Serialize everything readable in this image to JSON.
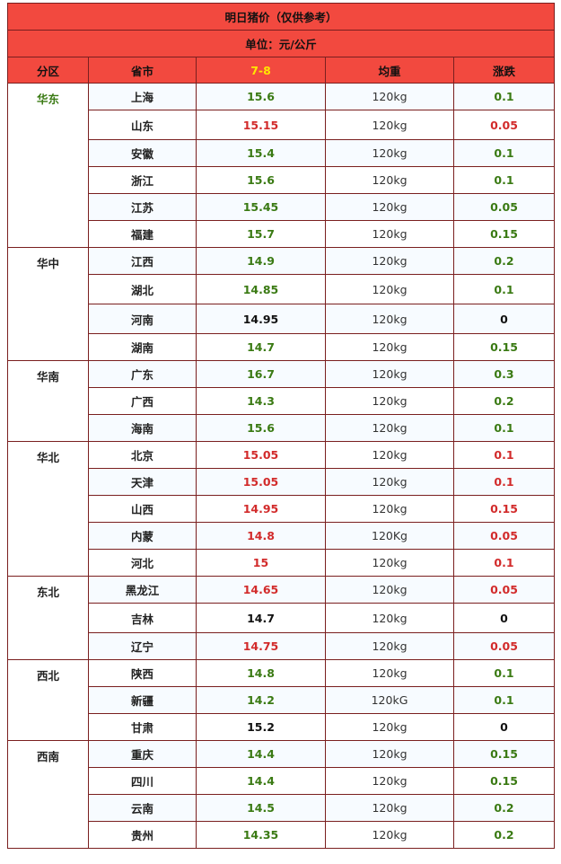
{
  "header": {
    "title": "明日猪价（仅供参考）",
    "unit": "单位：元/公斤",
    "columns": [
      "分区",
      "省市",
      "7-8",
      "均重",
      "涨跌"
    ]
  },
  "colors": {
    "header_bg": "#f2493f",
    "date_label": "#ffe600",
    "up_green": "#3a7a13",
    "red": "#d22b2b",
    "border": "#7a1f1f"
  },
  "regions": [
    {
      "name": "华东",
      "name_color": "green",
      "rows": [
        {
          "province": "上海",
          "price": "15.6",
          "price_color": "green",
          "weight": "120kg",
          "weight_color": "normal",
          "change": "0.1",
          "change_color": "green"
        },
        {
          "province": "山东",
          "price": "15.15",
          "price_color": "red",
          "weight": "120kg",
          "weight_color": "normal",
          "change": "0.05",
          "change_color": "red"
        },
        {
          "province": "安徽",
          "price": "15.4",
          "price_color": "green",
          "weight": "120kg",
          "weight_color": "normal",
          "change": "0.1",
          "change_color": "green"
        },
        {
          "province": "浙江",
          "price": "15.6",
          "price_color": "green",
          "weight": "120kg",
          "weight_color": "normal",
          "change": "0.1",
          "change_color": "green"
        },
        {
          "province": "江苏",
          "price": "15.45",
          "price_color": "green",
          "weight": "120kg",
          "weight_color": "normal",
          "change": "0.05",
          "change_color": "green"
        },
        {
          "province": "福建",
          "price": "15.7",
          "price_color": "green",
          "weight": "120kg",
          "weight_color": "red",
          "change": "0.15",
          "change_color": "green"
        }
      ]
    },
    {
      "name": "华中",
      "name_color": "normal",
      "rows": [
        {
          "province": "江西",
          "price": "14.9",
          "price_color": "green",
          "weight": "120kg",
          "weight_color": "normal",
          "change": "0.2",
          "change_color": "green"
        },
        {
          "province": "湖北",
          "price": "14.85",
          "price_color": "green",
          "weight": "120kg",
          "weight_color": "normal",
          "change": "0.1",
          "change_color": "green"
        },
        {
          "province": "河南",
          "price": "14.95",
          "price_color": "black",
          "weight": "120kg",
          "weight_color": "normal",
          "change": "0",
          "change_color": "black"
        },
        {
          "province": "湖南",
          "price": "14.7",
          "price_color": "green",
          "weight": "120kg",
          "weight_color": "normal",
          "change": "0.15",
          "change_color": "green"
        }
      ]
    },
    {
      "name": "华南",
      "name_color": "normal",
      "rows": [
        {
          "province": "广东",
          "price": "16.7",
          "price_color": "green",
          "weight": "120kg",
          "weight_color": "red",
          "change": "0.3",
          "change_color": "green"
        },
        {
          "province": "广西",
          "price": "14.3",
          "price_color": "green",
          "weight": "120kg",
          "weight_color": "normal",
          "change": "0.2",
          "change_color": "green"
        },
        {
          "province": "海南",
          "price": "15.6",
          "price_color": "green",
          "weight": "120kg",
          "weight_color": "normal",
          "change": "0.1",
          "change_color": "green"
        }
      ]
    },
    {
      "name": "华北",
      "name_color": "normal",
      "rows": [
        {
          "province": "北京",
          "price": "15.05",
          "price_color": "red",
          "weight": "120kg",
          "weight_color": "normal",
          "change": "0.1",
          "change_color": "red"
        },
        {
          "province": "天津",
          "price": "15.05",
          "price_color": "red",
          "weight": "120kg",
          "weight_color": "normal",
          "change": "0.1",
          "change_color": "red"
        },
        {
          "province": "山西",
          "price": "14.95",
          "price_color": "red",
          "weight": "120kg",
          "weight_color": "normal",
          "change": "0.15",
          "change_color": "red"
        },
        {
          "province": "内蒙",
          "price": "14.8",
          "price_color": "red",
          "weight": "120Kg",
          "weight_color": "normal",
          "change": "0.05",
          "change_color": "red"
        },
        {
          "province": "河北",
          "price": "15",
          "price_color": "red",
          "weight": "120kg",
          "weight_color": "normal",
          "change": "0.1",
          "change_color": "red"
        }
      ]
    },
    {
      "name": "东北",
      "name_color": "normal",
      "rows": [
        {
          "province": "黑龙江",
          "price": "14.65",
          "price_color": "red",
          "weight": "120kg",
          "weight_color": "normal",
          "change": "0.05",
          "change_color": "red"
        },
        {
          "province": "吉林",
          "price": "14.7",
          "price_color": "black",
          "weight": "120kg",
          "weight_color": "normal",
          "change": "0",
          "change_color": "black"
        },
        {
          "province": "辽宁",
          "price": "14.75",
          "price_color": "red",
          "weight": "120kg",
          "weight_color": "normal",
          "change": "0.05",
          "change_color": "red"
        }
      ]
    },
    {
      "name": "西北",
      "name_color": "normal",
      "rows": [
        {
          "province": "陕西",
          "price": "14.8",
          "price_color": "green",
          "weight": "120kg",
          "weight_color": "normal",
          "change": "0.1",
          "change_color": "green"
        },
        {
          "province": "新疆",
          "price": "14.2",
          "price_color": "green",
          "weight": "120kG",
          "weight_color": "normal",
          "change": "0.1",
          "change_color": "green"
        },
        {
          "province": "甘肃",
          "price": "15.2",
          "price_color": "black",
          "weight": "120kg",
          "weight_color": "normal",
          "change": "0",
          "change_color": "black"
        }
      ]
    },
    {
      "name": "西南",
      "name_color": "normal",
      "rows": [
        {
          "province": "重庆",
          "price": "14.4",
          "price_color": "green",
          "weight": "120kg",
          "weight_color": "red",
          "change": "0.15",
          "change_color": "green"
        },
        {
          "province": "四川",
          "price": "14.4",
          "price_color": "green",
          "weight": "120kg",
          "weight_color": "normal",
          "change": "0.15",
          "change_color": "green"
        },
        {
          "province": "云南",
          "price": "14.5",
          "price_color": "green",
          "province_color": "green",
          "weight": "120kg",
          "weight_color": "normal",
          "change": "0.2",
          "change_color": "green"
        },
        {
          "province": "贵州",
          "price": "14.35",
          "price_color": "green",
          "weight": "120kg",
          "weight_color": "normal",
          "change": "0.2",
          "change_color": "green"
        }
      ]
    }
  ]
}
